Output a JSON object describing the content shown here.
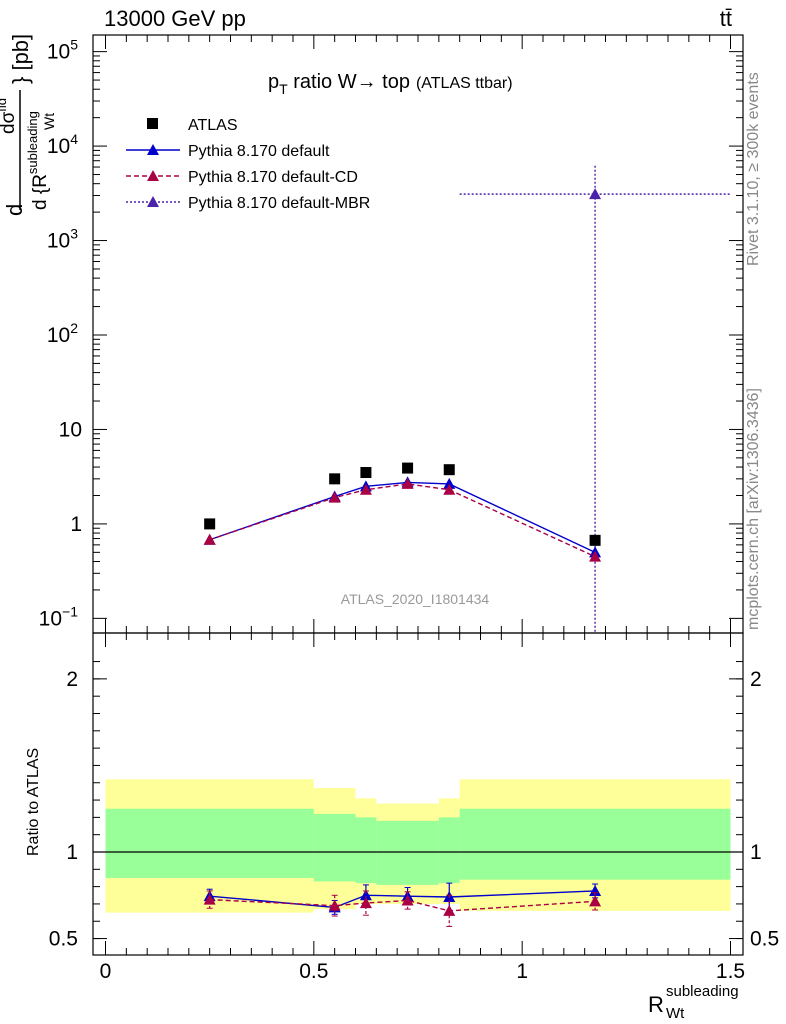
{
  "header": {
    "energy_label": "13000 GeV pp",
    "process_label": "tt̄"
  },
  "side_labels": {
    "rivet": "Rivet 3.1.10, ≥ 300k events",
    "mcplots": "mcplots.cern.ch [arXiv:1306.3436]"
  },
  "watermark": "ATLAS_2020_I1801434",
  "colors": {
    "atlas": "#000000",
    "default": "#0000cc",
    "default_cd": "#aa0044",
    "default_mbr": "#4b22aa",
    "band_outer": "#ffff99",
    "band_inner": "#99ff99"
  },
  "chart_data": [
    {
      "type": "line",
      "title_main": "p",
      "title_sub": "T",
      "title_rest": " ratio W→ top",
      "title_small": "(ATLAS ttbar)",
      "ylabel": "dσ/d{R_Wt^subleading} [pb]",
      "ylabel_parts": {
        "d": "d",
        "num": "dσ",
        "num_sup": "fid",
        "den": "d {R",
        "den_sup": "subleading",
        "den_sub": "Wt",
        "close": "} [pb]"
      },
      "yscale": "log",
      "ylim": [
        0.07,
        150000
      ],
      "xlim": [
        -0.03,
        1.53
      ],
      "y_ticks": [
        {
          "value": 0.1,
          "base": "10",
          "exp": "−1"
        },
        {
          "value": 1,
          "base": "1",
          "exp": ""
        },
        {
          "value": 10,
          "base": "10",
          "exp": ""
        },
        {
          "value": 100,
          "base": "10",
          "exp": "2"
        },
        {
          "value": 1000,
          "base": "10",
          "exp": "3"
        },
        {
          "value": 10000,
          "base": "10",
          "exp": "4"
        },
        {
          "value": 100000,
          "base": "10",
          "exp": "5"
        }
      ],
      "legend": [
        "ATLAS",
        "Pythia 8.170 default",
        "Pythia 8.170 default-CD",
        "Pythia 8.170 default-MBR"
      ],
      "legend_position": "top-left",
      "series": [
        {
          "name": "ATLAS",
          "style": "markers",
          "x": [
            0.25,
            0.55,
            0.625,
            0.725,
            0.825,
            1.175
          ],
          "y": [
            1.0,
            3.0,
            3.5,
            3.9,
            3.75,
            0.67
          ]
        },
        {
          "name": "Pythia 8.170 default",
          "style": "solid",
          "x": [
            0.25,
            0.55,
            0.625,
            0.725,
            0.825,
            1.175
          ],
          "y": [
            0.68,
            1.95,
            2.5,
            2.75,
            2.65,
            0.5
          ]
        },
        {
          "name": "Pythia 8.170 default-CD",
          "style": "dashed",
          "x": [
            0.25,
            0.55,
            0.625,
            0.725,
            0.825,
            1.175
          ],
          "y": [
            0.68,
            1.9,
            2.3,
            2.65,
            2.3,
            0.45
          ]
        },
        {
          "name": "Pythia 8.170 default-MBR",
          "style": "dotted",
          "x": [
            1.175
          ],
          "y": [
            3100
          ],
          "y_err_high": 6200,
          "y_err_low": 0.01,
          "x_range": [
            0.85,
            1.5
          ]
        }
      ]
    },
    {
      "type": "line",
      "ylabel": "Ratio to ATLAS",
      "xlabel_main": "R",
      "xlabel_sup": "subleading",
      "xlabel_sub": "Wt",
      "ylim": [
        0.405,
        2.265
      ],
      "xlim": [
        -0.03,
        1.53
      ],
      "y_ticks": [
        0.5,
        1,
        2
      ],
      "y_tick_labels": [
        "0.5",
        "1",
        "2"
      ],
      "x_ticks": [
        0,
        0.5,
        1,
        1.5
      ],
      "x_tick_labels": [
        "0",
        "0.5",
        "1",
        "1.5"
      ],
      "reference_line": 1,
      "bands": [
        {
          "x0": 0.0,
          "x1": 0.5,
          "outer": [
            0.65,
            1.42
          ],
          "inner": [
            0.85,
            1.25
          ]
        },
        {
          "x0": 0.5,
          "x1": 0.6,
          "outer": [
            0.67,
            1.37
          ],
          "inner": [
            0.83,
            1.22
          ]
        },
        {
          "x0": 0.6,
          "x1": 0.65,
          "outer": [
            0.7,
            1.31
          ],
          "inner": [
            0.82,
            1.2
          ]
        },
        {
          "x0": 0.65,
          "x1": 0.8,
          "outer": [
            0.7,
            1.28
          ],
          "inner": [
            0.81,
            1.18
          ]
        },
        {
          "x0": 0.8,
          "x1": 0.85,
          "outer": [
            0.7,
            1.31
          ],
          "inner": [
            0.82,
            1.2
          ]
        },
        {
          "x0": 0.85,
          "x1": 1.5,
          "outer": [
            0.66,
            1.42
          ],
          "inner": [
            0.84,
            1.25
          ]
        }
      ],
      "series": [
        {
          "name": "Pythia 8.170 default",
          "style": "solid",
          "x": [
            0.25,
            0.55,
            0.625,
            0.725,
            0.825,
            1.175
          ],
          "y": [
            0.745,
            0.68,
            0.75,
            0.745,
            0.74,
            0.775
          ],
          "err": [
            0.04,
            0.04,
            0.06,
            0.05,
            0.08,
            0.04
          ]
        },
        {
          "name": "Pythia 8.170 default-CD",
          "style": "dashed",
          "x": [
            0.25,
            0.55,
            0.625,
            0.725,
            0.825,
            1.175
          ],
          "y": [
            0.725,
            0.69,
            0.705,
            0.72,
            0.66,
            0.715
          ],
          "err": [
            0.05,
            0.06,
            0.07,
            0.05,
            0.09,
            0.05
          ]
        }
      ]
    }
  ]
}
